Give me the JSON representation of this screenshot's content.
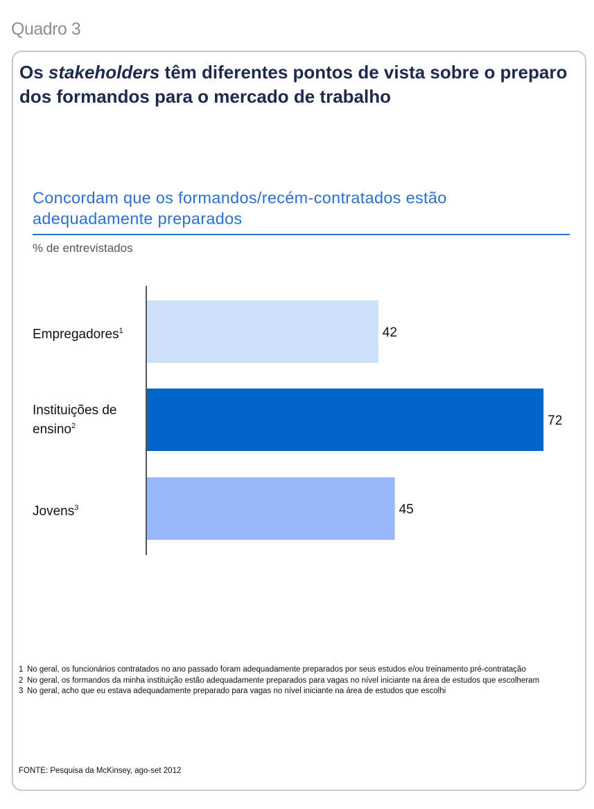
{
  "header": {
    "quadro": "Quadro 3",
    "title_before": "Os ",
    "title_italic": "stakeholders",
    "title_after": " têm diferentes pontos de vista sobre o preparo dos formandos para o mercado de trabalho"
  },
  "chart_data": {
    "type": "bar",
    "orientation": "horizontal",
    "title": "Concordam que os formandos/recém-contratados estão adequadamente preparados",
    "unit": "% de entrevistados",
    "categories": [
      {
        "label": "Empregadores",
        "note": "1"
      },
      {
        "label": "Instituições de ensino",
        "note": "2"
      },
      {
        "label": "Jovens",
        "note": "3"
      }
    ],
    "values": [
      42,
      72,
      45
    ],
    "colors": [
      "#cce0fa",
      "#0065c9",
      "#97b6fb"
    ],
    "xlim": [
      0,
      75
    ],
    "grid": false,
    "legend": "none"
  },
  "footnotes": [
    {
      "num": "1",
      "text": "No geral, os funcionários contratados no ano passado foram adequadamente preparados por seus estudos e/ou treinamento pré-contratação"
    },
    {
      "num": "2",
      "text": "No geral, os formandos da minha instituição estão adequadamente preparados para vagas no nível iniciante na área de estudos que escolheram"
    },
    {
      "num": "3",
      "text": "No geral, acho que eu estava adequadamente preparado para vagas  no nível iniciante na área de estudos que escolhi"
    }
  ],
  "source": "FONTE: Pesquisa da McKinsey, ago-set 2012"
}
